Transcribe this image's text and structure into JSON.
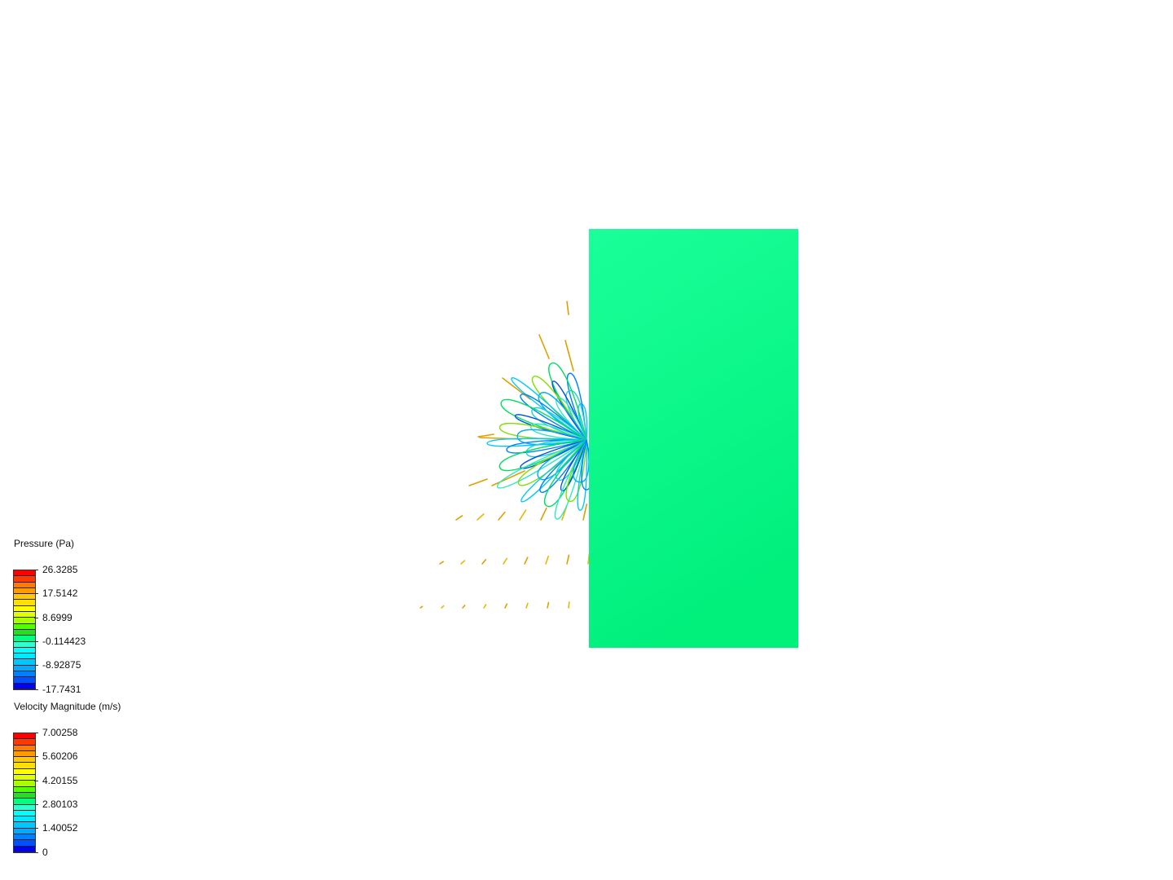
{
  "legends": [
    {
      "title": "Pressure (Pa)",
      "ticks": [
        "26.3285",
        "17.5142",
        "8.6999",
        "-0.114423",
        "-8.92875",
        "-17.7431"
      ]
    },
    {
      "title": "Velocity Magnitude (m/s)",
      "ticks": [
        "7.00258",
        "5.60206",
        "4.20155",
        "2.80103",
        "1.40052",
        "0"
      ]
    }
  ],
  "colormap": [
    "#ff0000",
    "#ff3a00",
    "#ff7a00",
    "#ff9a00",
    "#ffc800",
    "#ffe000",
    "#ffff00",
    "#e0ff00",
    "#a8ff00",
    "#50ff00",
    "#20e020",
    "#00ff80",
    "#30ffd0",
    "#00ffff",
    "#00eaff",
    "#00c8ff",
    "#00aaff",
    "#0080ff",
    "#0050ff",
    "#0000ff"
  ],
  "body_colors": {
    "top": "#1aff99",
    "bottom": "#00f07c"
  }
}
